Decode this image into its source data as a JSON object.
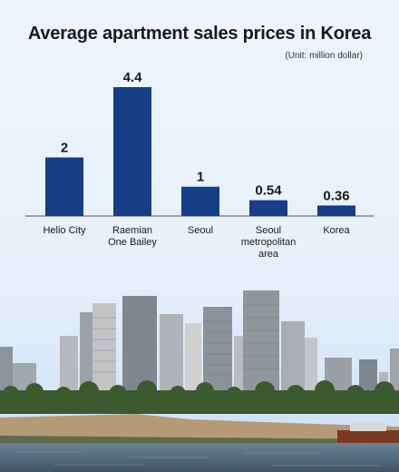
{
  "header": {
    "title": "Average apartment sales prices in Korea",
    "unit_note": "(Unit: million dollar)"
  },
  "colors": {
    "bar": "#153e86",
    "background": "#e9f2fb",
    "text": "#1a1a1a"
  },
  "chart_data": {
    "type": "bar",
    "title": "Average apartment sales prices in Korea",
    "unit": "(Unit: million dollar)",
    "categories": [
      [
        "Helio City"
      ],
      [
        "Raemian",
        "One Bailey"
      ],
      [
        "Seoul"
      ],
      [
        "Seoul",
        "metropolitan",
        "area"
      ],
      [
        "Korea"
      ]
    ],
    "values": [
      2,
      4.4,
      1,
      0.54,
      0.36
    ],
    "value_labels": [
      "2",
      "4.4",
      "1",
      "0.54",
      "0.36"
    ],
    "ylim": [
      0,
      4.4
    ],
    "grid": false,
    "legend": "none"
  },
  "photo": {
    "description_icon": "city-skyline-photo"
  }
}
